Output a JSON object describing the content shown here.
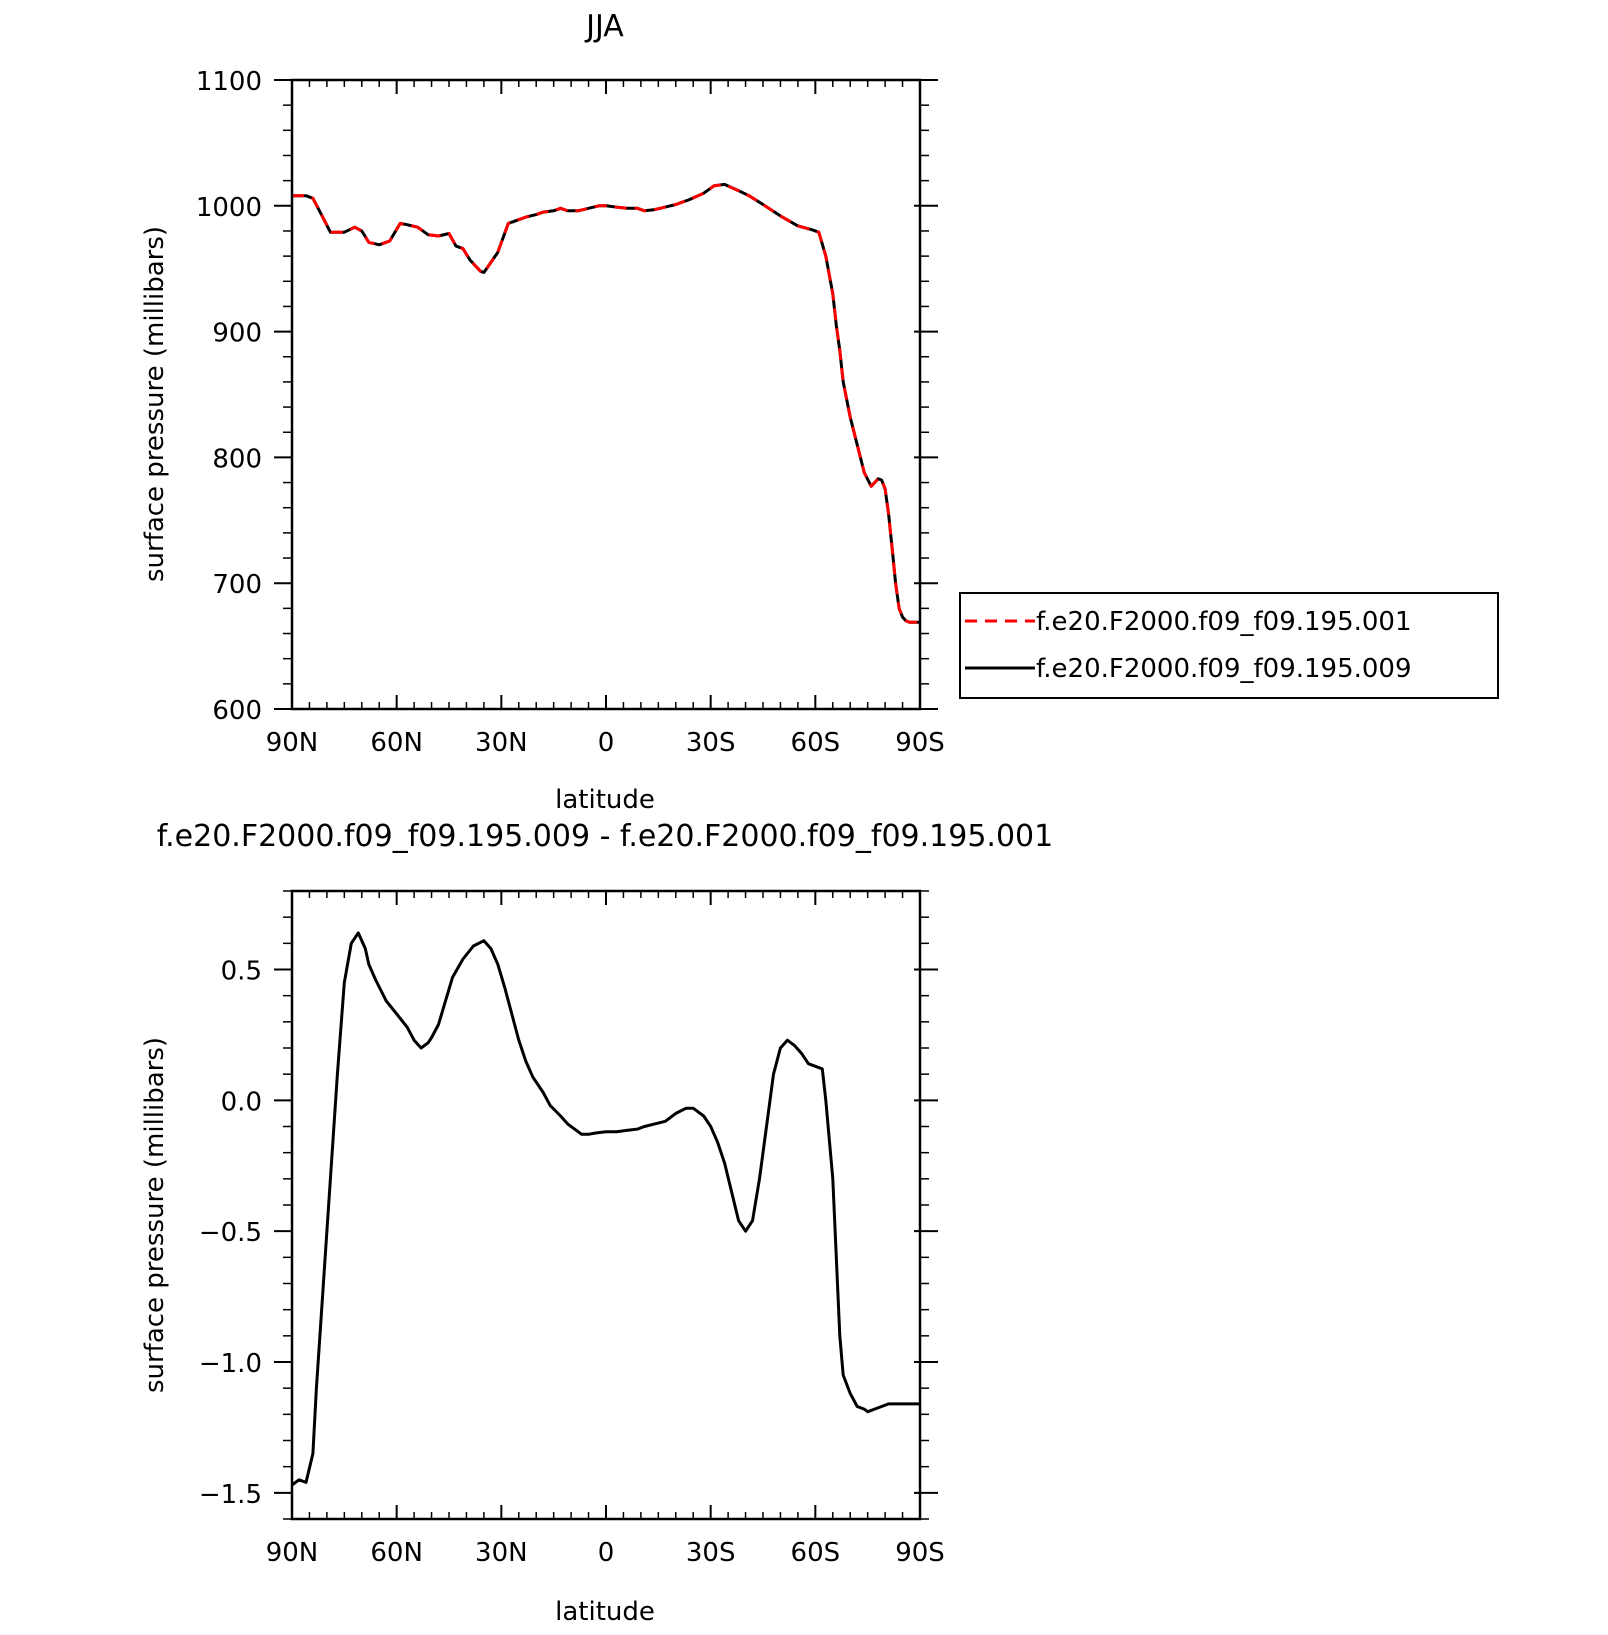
{
  "chart_data": [
    {
      "type": "line",
      "title": "JJA",
      "xlabel": "latitude",
      "ylabel": "surface pressure (millibars)",
      "x_tick_labels": [
        "90N",
        "60N",
        "30N",
        "0",
        "30S",
        "60S",
        "90S"
      ],
      "x_tick_values": [
        -90,
        -60,
        -30,
        0,
        30,
        60,
        90
      ],
      "y_tick_labels": [
        "600",
        "700",
        "800",
        "900",
        "1000",
        "1100"
      ],
      "y_tick_values": [
        600,
        700,
        800,
        900,
        1000,
        1100
      ],
      "xlim": [
        -90,
        90
      ],
      "ylim": [
        600,
        1100
      ],
      "legend_placement": "outside right",
      "x": [
        -90,
        -86,
        -84,
        -81,
        -79,
        -75,
        -72,
        -70,
        -68,
        -65,
        -62,
        -59,
        -57,
        -54,
        -51,
        -48,
        -45,
        -43,
        -41,
        -39,
        -36,
        -35,
        -33,
        -31,
        -28,
        -26,
        -23,
        -20,
        -18,
        -15,
        -13,
        -11,
        -8,
        -5,
        -2,
        0,
        3,
        6,
        9,
        11,
        14,
        17,
        20,
        24,
        28,
        31,
        34,
        38,
        41,
        45,
        50,
        55,
        59,
        61,
        63,
        65,
        66,
        67,
        68,
        70,
        72,
        74,
        76,
        77,
        78,
        79,
        80,
        81,
        82,
        83,
        84,
        85,
        86,
        87,
        88,
        89,
        90
      ],
      "series": [
        {
          "name": "f.e20.F2000.f09_f09.195.001",
          "color": "#ff0000",
          "dash": "dashed",
          "y": [
            1008,
            1008,
            1006,
            990,
            979,
            979,
            983,
            980,
            971,
            969,
            972,
            986,
            985,
            983,
            977,
            976,
            978,
            968,
            966,
            957,
            948,
            947,
            955,
            963,
            986,
            988,
            991,
            993,
            995,
            996,
            998,
            996,
            996,
            998,
            1000,
            1000,
            999,
            998,
            998,
            996,
            997,
            999,
            1001,
            1005,
            1010,
            1016,
            1017,
            1012,
            1008,
            1001,
            992,
            984,
            981,
            979,
            960,
            930,
            905,
            885,
            860,
            832,
            810,
            788,
            777,
            780,
            783,
            782,
            775,
            755,
            728,
            700,
            680,
            673,
            670,
            669,
            669,
            669,
            669
          ]
        },
        {
          "name": "f.e20.F2000.f09_f09.195.009",
          "color": "#000000",
          "dash": "solid",
          "y": [
            1008,
            1008,
            1006,
            990,
            979,
            979,
            983,
            980,
            971,
            969,
            972,
            986,
            985,
            983,
            977,
            976,
            978,
            968,
            966,
            957,
            948,
            947,
            955,
            963,
            986,
            988,
            991,
            993,
            995,
            996,
            998,
            996,
            996,
            998,
            1000,
            1000,
            999,
            998,
            998,
            996,
            997,
            999,
            1001,
            1005,
            1010,
            1016,
            1017,
            1012,
            1008,
            1001,
            992,
            984,
            981,
            979,
            960,
            930,
            905,
            885,
            860,
            832,
            810,
            788,
            777,
            780,
            783,
            782,
            775,
            755,
            728,
            700,
            680,
            673,
            670,
            669,
            669,
            669,
            669
          ]
        }
      ]
    },
    {
      "type": "line",
      "title": "f.e20.F2000.f09_f09.195.009 - f.e20.F2000.f09_f09.195.001",
      "xlabel": "latitude",
      "ylabel": "surface pressure (millibars)",
      "x_tick_labels": [
        "90N",
        "60N",
        "30N",
        "0",
        "30S",
        "60S",
        "90S"
      ],
      "x_tick_values": [
        -90,
        -60,
        -30,
        0,
        30,
        60,
        90
      ],
      "y_tick_labels": [
        "−1.5",
        "−1.0",
        "−0.5",
        "0.0",
        "0.5"
      ],
      "y_tick_values": [
        -1.5,
        -1.0,
        -0.5,
        0.0,
        0.5
      ],
      "xlim": [
        -90,
        90
      ],
      "ylim": [
        -1.6,
        0.8
      ],
      "series": [
        {
          "color": "#000000",
          "dash": "solid",
          "x": [
            -90,
            -88,
            -86,
            -84,
            -83,
            -81,
            -79,
            -77,
            -75,
            -73,
            -71,
            -69,
            -68,
            -66,
            -63,
            -60,
            -57,
            -55,
            -53,
            -51,
            -50,
            -48,
            -46,
            -44,
            -41,
            -38,
            -35,
            -33,
            -31,
            -29,
            -27,
            -25,
            -23,
            -21,
            -18,
            -16,
            -13,
            -11,
            -9,
            -7,
            -5,
            -3,
            0,
            3,
            6,
            9,
            11,
            14,
            17,
            20,
            23,
            25,
            26,
            28,
            30,
            32,
            34,
            36,
            38,
            40,
            42,
            44,
            46,
            48,
            50,
            52,
            54,
            56,
            58,
            60,
            62,
            63,
            65,
            66,
            67,
            68,
            70,
            72,
            74,
            75,
            77,
            79,
            81,
            83,
            84,
            85,
            86,
            88,
            90
          ],
          "y": [
            -1.47,
            -1.45,
            -1.46,
            -1.35,
            -1.1,
            -0.7,
            -0.3,
            0.1,
            0.45,
            0.6,
            0.64,
            0.58,
            0.52,
            0.46,
            0.38,
            0.33,
            0.28,
            0.23,
            0.2,
            0.22,
            0.24,
            0.29,
            0.38,
            0.47,
            0.54,
            0.59,
            0.61,
            0.58,
            0.52,
            0.43,
            0.33,
            0.23,
            0.15,
            0.09,
            0.03,
            -0.02,
            -0.06,
            -0.09,
            -0.11,
            -0.13,
            -0.13,
            -0.125,
            -0.12,
            -0.12,
            -0.115,
            -0.11,
            -0.1,
            -0.09,
            -0.08,
            -0.05,
            -0.03,
            -0.03,
            -0.04,
            -0.06,
            -0.1,
            -0.16,
            -0.24,
            -0.35,
            -0.46,
            -0.5,
            -0.46,
            -0.3,
            -0.1,
            0.1,
            0.2,
            0.23,
            0.21,
            0.18,
            0.14,
            0.13,
            0.12,
            0.0,
            -0.3,
            -0.6,
            -0.9,
            -1.05,
            -1.12,
            -1.17,
            -1.18,
            -1.19,
            -1.18,
            -1.17,
            -1.16,
            -1.16,
            -1.16,
            -1.16,
            -1.16,
            -1.16,
            -1.16
          ]
        }
      ]
    }
  ]
}
